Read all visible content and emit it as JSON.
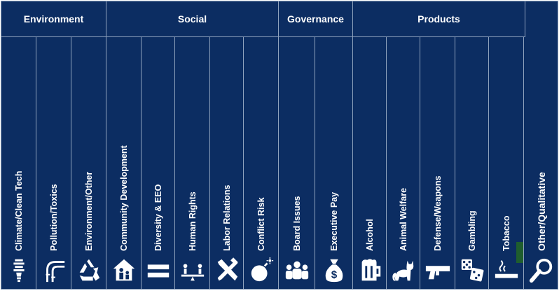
{
  "groups": {
    "environment": "Environment",
    "social": "Social",
    "governance": "Governance",
    "products": "Products"
  },
  "columns": {
    "climate": "Climate/Clean Tech",
    "pollution": "Pollution/Toxics",
    "env_other": "Environment/Other",
    "community": "Community Development",
    "diversity": "Diversity & EEO",
    "human_rights": "Human Rights",
    "labor": "Labor Relations",
    "conflict": "Conflict Risk",
    "board": "Board Issues",
    "exec_pay": "Executive Pay",
    "alcohol": "Alcohol",
    "animal": "Animal Welfare",
    "defense": "Defense/Weapons",
    "gambling": "Gambling",
    "tobacco": "Tobacco",
    "other": "Other/Qualitative"
  },
  "icons": {
    "climate": "light-bulb-icon",
    "pollution": "smokestack-icon",
    "env_other": "recycle-icon",
    "community": "house-family-icon",
    "diversity": "equals-icon",
    "human_rights": "scales-icon",
    "labor": "tools-icon",
    "conflict": "bomb-icon",
    "board": "group-icon",
    "exec_pay": "money-bag-icon",
    "alcohol": "beer-mug-icon",
    "animal": "cat-icon",
    "defense": "pistol-icon",
    "gambling": "dice-icon",
    "tobacco": "cigarette-icon",
    "other": "magnifier-icon"
  },
  "colors": {
    "background": "#0c2d62",
    "grid": "#8fa2bd",
    "text": "#ffffff",
    "tobacco_marker": "#1f5e2e"
  }
}
